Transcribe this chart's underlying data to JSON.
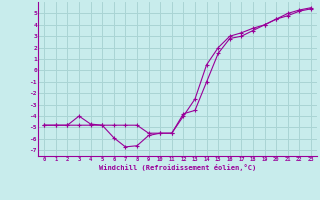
{
  "xlabel": "Windchill (Refroidissement éolien,°C)",
  "bg_color": "#c8ecec",
  "grid_color": "#aad4d4",
  "line_color": "#990099",
  "xlim": [
    -0.5,
    23.5
  ],
  "ylim": [
    -7.5,
    6.0
  ],
  "xticks": [
    0,
    1,
    2,
    3,
    4,
    5,
    6,
    7,
    8,
    9,
    10,
    11,
    12,
    13,
    14,
    15,
    16,
    17,
    18,
    19,
    20,
    21,
    22,
    23
  ],
  "yticks": [
    -7,
    -6,
    -5,
    -4,
    -3,
    -2,
    -1,
    0,
    1,
    2,
    3,
    4,
    5
  ],
  "line1_x": [
    0,
    1,
    2,
    3,
    4,
    5,
    6,
    7,
    8,
    9,
    10,
    11,
    12,
    13,
    14,
    15,
    16,
    17,
    18,
    19,
    20,
    21,
    22,
    23
  ],
  "line1_y": [
    -4.8,
    -4.8,
    -4.8,
    -4.0,
    -4.7,
    -4.8,
    -5.9,
    -6.7,
    -6.6,
    -5.7,
    -5.5,
    -5.5,
    -3.8,
    -3.5,
    -1.0,
    1.5,
    2.8,
    3.0,
    3.5,
    4.0,
    4.5,
    4.8,
    5.2,
    5.4
  ],
  "line2_x": [
    0,
    1,
    2,
    3,
    4,
    5,
    6,
    7,
    8,
    9,
    10,
    11,
    12,
    13,
    14,
    15,
    16,
    17,
    18,
    19,
    20,
    21,
    22,
    23
  ],
  "line2_y": [
    -4.8,
    -4.8,
    -4.8,
    -4.8,
    -4.8,
    -4.8,
    -4.8,
    -4.8,
    -4.8,
    -5.5,
    -5.5,
    -5.5,
    -4.0,
    -2.5,
    0.5,
    2.0,
    3.0,
    3.3,
    3.7,
    4.0,
    4.5,
    5.0,
    5.3,
    5.5
  ]
}
